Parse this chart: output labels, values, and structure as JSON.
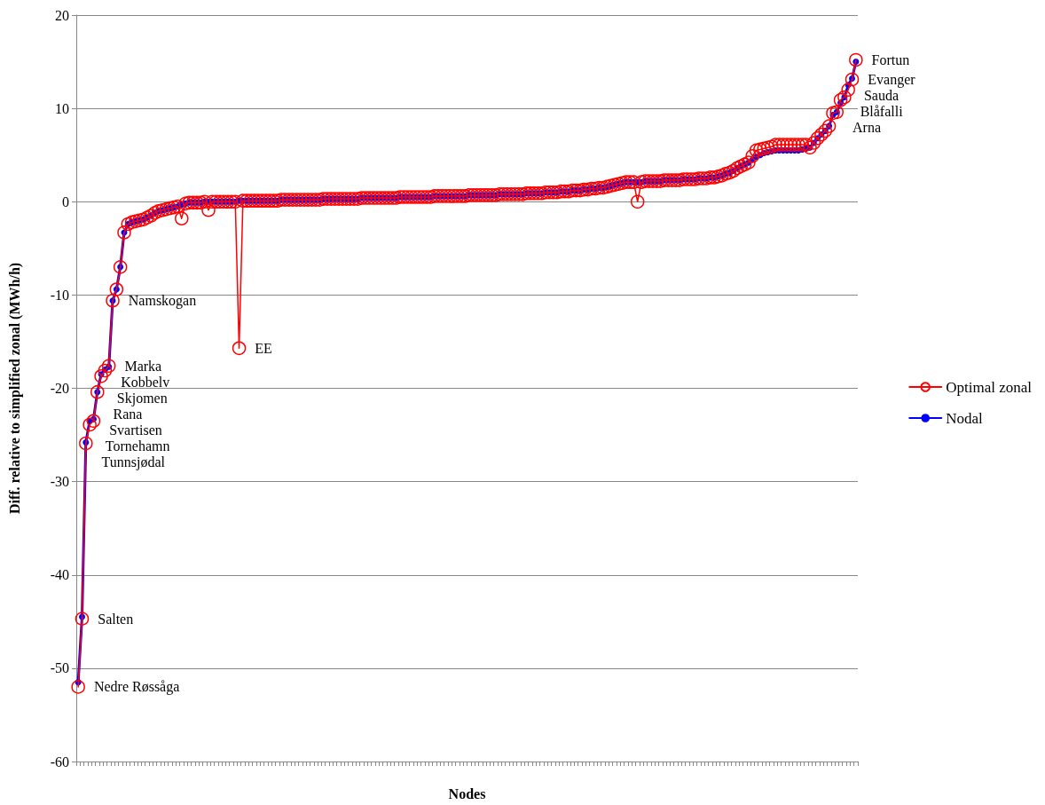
{
  "chart_data": {
    "type": "line",
    "xlabel": "Nodes",
    "ylabel": "Diff. relative to simplified zonal (MWh/h)",
    "categories": [
      null,
      null,
      null,
      null,
      null,
      null,
      null,
      null,
      null,
      null,
      null,
      null,
      null,
      null,
      null,
      null,
      null,
      null,
      null,
      null,
      null,
      null,
      null,
      null,
      null,
      null,
      null,
      null,
      null,
      null,
      null,
      null,
      null,
      null,
      null,
      null,
      null,
      null,
      null,
      null,
      null,
      null,
      null,
      null,
      null,
      null,
      null,
      null,
      null,
      null,
      null,
      null,
      null,
      null,
      null,
      null,
      null,
      null,
      null,
      null,
      null,
      null,
      null,
      null,
      null,
      null,
      null,
      null,
      null,
      null,
      null,
      null,
      null,
      null,
      null,
      null,
      null,
      null,
      null,
      null,
      null,
      null,
      null,
      null,
      null,
      null,
      null,
      null,
      null,
      null,
      null,
      null,
      null,
      null,
      null,
      null,
      null,
      null,
      null,
      null,
      null,
      null,
      null,
      null,
      null,
      null,
      null,
      null,
      null,
      null,
      null,
      null,
      null,
      null,
      null,
      null,
      null,
      null,
      null,
      null,
      null,
      null,
      null,
      null,
      null,
      null,
      null,
      null,
      null,
      null,
      null,
      null,
      null,
      null,
      null,
      null,
      null,
      null,
      null,
      null,
      null,
      null,
      null,
      null,
      null,
      null,
      null,
      null,
      null,
      null,
      null,
      null,
      null,
      null,
      null,
      null,
      null,
      null,
      null,
      null,
      null,
      null,
      null,
      null,
      null,
      null,
      null,
      null,
      null,
      null,
      null,
      null,
      null,
      null,
      null,
      null,
      null,
      null,
      null,
      null,
      null,
      null,
      null,
      null,
      null,
      null,
      null,
      null,
      null,
      null,
      null,
      null,
      null,
      null,
      null,
      null,
      null,
      null,
      null,
      null,
      null,
      null,
      null,
      null
    ],
    "series": [
      {
        "name": "Optimal zonal",
        "color": "#ff0000",
        "values": [
          -52.0,
          -44.7,
          -25.9,
          -23.9,
          -23.5,
          -20.4,
          -18.7,
          -18.1,
          -17.6,
          -10.6,
          -9.4,
          -7.0,
          -3.3,
          -2.4,
          -2.2,
          -2.1,
          -2.0,
          -1.9,
          -1.7,
          -1.5,
          -1.2,
          -1.0,
          -0.9,
          -0.8,
          -0.7,
          -0.6,
          -0.5,
          -1.8,
          -0.2,
          -0.1,
          -0.1,
          -0.1,
          -0.1,
          0,
          -0.9,
          0,
          0,
          0,
          0,
          0,
          0,
          0,
          -15.7,
          0.1,
          0.1,
          0.1,
          0.1,
          0.1,
          0.1,
          0.1,
          0.1,
          0.1,
          0.1,
          0.2,
          0.2,
          0.2,
          0.2,
          0.2,
          0.2,
          0.2,
          0.2,
          0.2,
          0.2,
          0.2,
          0.3,
          0.3,
          0.3,
          0.3,
          0.3,
          0.3,
          0.3,
          0.3,
          0.3,
          0.3,
          0.4,
          0.4,
          0.4,
          0.4,
          0.4,
          0.4,
          0.4,
          0.4,
          0.4,
          0.4,
          0.5,
          0.5,
          0.5,
          0.5,
          0.5,
          0.5,
          0.5,
          0.5,
          0.5,
          0.6,
          0.6,
          0.6,
          0.6,
          0.6,
          0.6,
          0.6,
          0.6,
          0.6,
          0.7,
          0.7,
          0.7,
          0.7,
          0.7,
          0.7,
          0.7,
          0.7,
          0.8,
          0.8,
          0.8,
          0.8,
          0.8,
          0.8,
          0.8,
          0.9,
          0.9,
          0.9,
          0.9,
          0.9,
          1.0,
          1.0,
          1.0,
          1.0,
          1.1,
          1.1,
          1.1,
          1.2,
          1.2,
          1.2,
          1.3,
          1.3,
          1.4,
          1.4,
          1.5,
          1.5,
          1.6,
          1.7,
          1.8,
          1.9,
          2.0,
          2.1,
          2.1,
          2.1,
          0.0,
          2.1,
          2.2,
          2.2,
          2.2,
          2.2,
          2.2,
          2.3,
          2.3,
          2.3,
          2.3,
          2.3,
          2.4,
          2.4,
          2.4,
          2.4,
          2.5,
          2.5,
          2.5,
          2.6,
          2.6,
          2.7,
          2.8,
          3.0,
          3.1,
          3.3,
          3.6,
          3.8,
          4.0,
          4.2,
          4.9,
          5.5,
          5.6,
          5.7,
          5.8,
          5.9,
          6.1,
          6.1,
          6.1,
          6.1,
          6.1,
          6.1,
          6.1,
          6.1,
          6.1,
          5.8,
          6.3,
          6.8,
          7.2,
          7.6,
          8.1,
          9.5,
          9.6,
          10.9,
          11.2,
          12.0,
          13.1,
          15.2
        ],
        "value_labels": [
          "Nedre Røssåga",
          "Salten",
          "Tunnsjødal",
          "Tornehamn",
          "Svartisen",
          "Rana",
          "Skjomen",
          "Kobbelv",
          "Marka",
          "Namskogan",
          null,
          null,
          null,
          null,
          null,
          null,
          null,
          null,
          null,
          null,
          null,
          null,
          null,
          null,
          null,
          null,
          null,
          null,
          null,
          null,
          null,
          null,
          null,
          null,
          null,
          null,
          null,
          null,
          null,
          null,
          null,
          null,
          "EE",
          null,
          null,
          null,
          null,
          null,
          null,
          null,
          null,
          null,
          null,
          null,
          null,
          null,
          null,
          null,
          null,
          null,
          null,
          null,
          null,
          null,
          null,
          null,
          null,
          null,
          null,
          null,
          null,
          null,
          null,
          null,
          null,
          null,
          null,
          null,
          null,
          null,
          null,
          null,
          null,
          null,
          null,
          null,
          null,
          null,
          null,
          null,
          null,
          null,
          null,
          null,
          null,
          null,
          null,
          null,
          null,
          null,
          null,
          null,
          null,
          null,
          null,
          null,
          null,
          null,
          null,
          null,
          null,
          null,
          null,
          null,
          null,
          null,
          null,
          null,
          null,
          null,
          null,
          null,
          null,
          null,
          null,
          null,
          null,
          null,
          null,
          null,
          null,
          null,
          null,
          null,
          null,
          null,
          null,
          null,
          null,
          null,
          null,
          null,
          null,
          null,
          null,
          null,
          null,
          null,
          null,
          null,
          null,
          null,
          null,
          null,
          null,
          null,
          null,
          null,
          null,
          null,
          null,
          null,
          null,
          null,
          null,
          null,
          null,
          null,
          null,
          null,
          null,
          null,
          null,
          null,
          null,
          null,
          null,
          null,
          null,
          null,
          null,
          null,
          null,
          null,
          null,
          null,
          null,
          null,
          null,
          null,
          null,
          null,
          null,
          null,
          null,
          null,
          null,
          null,
          "Arna",
          null,
          "Blåfalli",
          "Sauda",
          "Evanger",
          "Fortun"
        ]
      },
      {
        "name": "Nodal",
        "color": "#0000ff",
        "values": [
          -51.5,
          -44.5,
          -25.8,
          -23.5,
          -23.3,
          -20.4,
          -18.5,
          -18.0,
          -17.7,
          -10.6,
          -9.4,
          -7.0,
          -3.3,
          -2.4,
          -2.2,
          -2.1,
          -2.0,
          -1.9,
          -1.7,
          -1.5,
          -1.2,
          -1.0,
          -0.9,
          -0.8,
          -0.7,
          -0.6,
          -0.5,
          -0.3,
          -0.2,
          -0.1,
          -0.1,
          -0.1,
          -0.1,
          0,
          0,
          0,
          0,
          0,
          0,
          0,
          0,
          0,
          0.1,
          0.1,
          0.1,
          0.1,
          0.1,
          0.1,
          0.1,
          0.1,
          0.1,
          0.1,
          0.1,
          0.2,
          0.2,
          0.2,
          0.2,
          0.2,
          0.2,
          0.2,
          0.2,
          0.2,
          0.2,
          0.2,
          0.3,
          0.3,
          0.3,
          0.3,
          0.3,
          0.3,
          0.3,
          0.3,
          0.3,
          0.3,
          0.4,
          0.4,
          0.4,
          0.4,
          0.4,
          0.4,
          0.4,
          0.4,
          0.4,
          0.4,
          0.5,
          0.5,
          0.5,
          0.5,
          0.5,
          0.5,
          0.5,
          0.5,
          0.5,
          0.6,
          0.6,
          0.6,
          0.6,
          0.6,
          0.6,
          0.6,
          0.6,
          0.6,
          0.7,
          0.7,
          0.7,
          0.7,
          0.7,
          0.7,
          0.7,
          0.7,
          0.8,
          0.8,
          0.8,
          0.8,
          0.8,
          0.8,
          0.8,
          0.9,
          0.9,
          0.9,
          0.9,
          0.9,
          1.0,
          1.0,
          1.0,
          1.0,
          1.1,
          1.1,
          1.1,
          1.2,
          1.2,
          1.2,
          1.3,
          1.3,
          1.4,
          1.4,
          1.5,
          1.5,
          1.6,
          1.7,
          1.8,
          1.9,
          2.0,
          2.1,
          2.1,
          2.1,
          2.1,
          2.1,
          2.2,
          2.2,
          2.2,
          2.2,
          2.2,
          2.3,
          2.3,
          2.3,
          2.3,
          2.3,
          2.4,
          2.4,
          2.4,
          2.4,
          2.5,
          2.5,
          2.5,
          2.6,
          2.6,
          2.7,
          2.8,
          3.0,
          3.1,
          3.3,
          3.6,
          3.8,
          4.0,
          4.2,
          4.5,
          4.8,
          5.0,
          5.2,
          5.3,
          5.4,
          5.5,
          5.5,
          5.5,
          5.5,
          5.5,
          5.5,
          5.5,
          5.6,
          5.7,
          5.8,
          6.3,
          6.8,
          7.2,
          7.6,
          8.1,
          9.3,
          9.6,
          10.6,
          11.2,
          12.5,
          13.2,
          15.0
        ]
      }
    ],
    "ylim": [
      -60,
      20
    ],
    "yticks": [
      -60,
      -50,
      -40,
      -30,
      -20,
      -10,
      0,
      10,
      20
    ],
    "grid": "y",
    "legend": "right",
    "marker": "circle",
    "line_style": "solid"
  }
}
